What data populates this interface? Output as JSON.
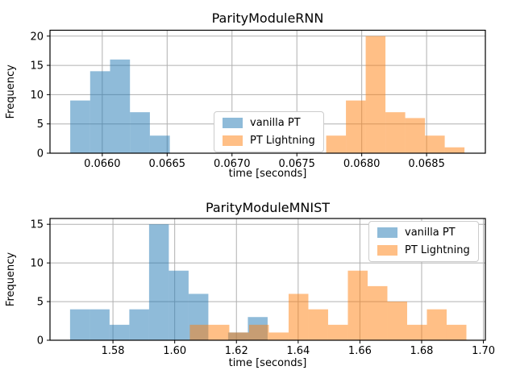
{
  "figure": {
    "background": "#ffffff",
    "grid_color": "#b0b0b0",
    "text_color": "#000000",
    "legend_border_color": "#cccccc"
  },
  "chart_data": [
    {
      "type": "histogram",
      "title": "ParityModuleRNN",
      "xlabel": "time [seconds]",
      "ylabel": "Frequency",
      "xlim": [
        0.065597,
        0.068953
      ],
      "ylim": [
        0,
        21
      ],
      "grid": true,
      "xticks": [
        {
          "value": 0.066,
          "label": "0.0660"
        },
        {
          "value": 0.0665,
          "label": "0.0665"
        },
        {
          "value": 0.067,
          "label": "0.0670"
        },
        {
          "value": 0.0675,
          "label": "0.0675"
        },
        {
          "value": 0.068,
          "label": "0.0680"
        },
        {
          "value": 0.0685,
          "label": "0.0685"
        },
        {
          "value": 0.069,
          "label": "0.0690"
        }
      ],
      "yticks": [
        {
          "value": 0,
          "label": "0"
        },
        {
          "value": 5,
          "label": "5"
        },
        {
          "value": 10,
          "label": "10"
        },
        {
          "value": 15,
          "label": "15"
        },
        {
          "value": 20,
          "label": "20"
        }
      ],
      "series": [
        {
          "name": "vanilla PT",
          "color": "rgba(31,119,180,0.5)",
          "bin_start": 0.065753,
          "bin_width": 0.0001535,
          "counts": [
            9,
            14,
            16,
            7,
            3
          ]
        },
        {
          "name": "PT Lightning",
          "color": "rgba(255,127,14,0.5)",
          "bin_start": 0.067726,
          "bin_width": 0.0001523,
          "counts": [
            3,
            9,
            20,
            7,
            6,
            3,
            1
          ]
        }
      ],
      "legend": {
        "position": "lower-center",
        "entries": [
          {
            "label": "vanilla PT",
            "color": "rgba(31,119,180,0.5)"
          },
          {
            "label": "PT Lightning",
            "color": "rgba(255,127,14,0.5)"
          }
        ]
      }
    },
    {
      "type": "histogram",
      "title": "ParityModuleMNIST",
      "xlabel": "time [seconds]",
      "ylabel": "Frequency",
      "xlim": [
        1.5596,
        1.70064
      ],
      "ylim": [
        0,
        15.75
      ],
      "grid": true,
      "xticks": [
        {
          "value": 1.58,
          "label": "1.58"
        },
        {
          "value": 1.6,
          "label": "1.60"
        },
        {
          "value": 1.62,
          "label": "1.62"
        },
        {
          "value": 1.64,
          "label": "1.64"
        },
        {
          "value": 1.66,
          "label": "1.66"
        },
        {
          "value": 1.68,
          "label": "1.68"
        },
        {
          "value": 1.7,
          "label": "1.70"
        }
      ],
      "yticks": [
        {
          "value": 0,
          "label": "0"
        },
        {
          "value": 5,
          "label": "5"
        },
        {
          "value": 10,
          "label": "10"
        },
        {
          "value": 15,
          "label": "15"
        }
      ],
      "series": [
        {
          "name": "vanilla PT",
          "color": "rgba(31,119,180,0.5)",
          "bin_start": 1.5661,
          "bin_width": 0.0064,
          "counts": [
            4,
            4,
            2,
            4,
            15,
            9,
            6,
            0,
            1,
            3
          ]
        },
        {
          "name": "PT Lightning",
          "color": "rgba(255,127,14,0.5)",
          "bin_start": 1.6049,
          "bin_width": 0.0064,
          "counts": [
            2,
            2,
            1,
            2,
            1,
            6,
            4,
            2,
            9,
            7,
            5,
            2,
            4,
            2
          ]
        }
      ],
      "legend": {
        "position": "upper-right",
        "entries": [
          {
            "label": "vanilla PT",
            "color": "rgba(31,119,180,0.5)"
          },
          {
            "label": "PT Lightning",
            "color": "rgba(255,127,14,0.5)"
          }
        ]
      }
    }
  ]
}
